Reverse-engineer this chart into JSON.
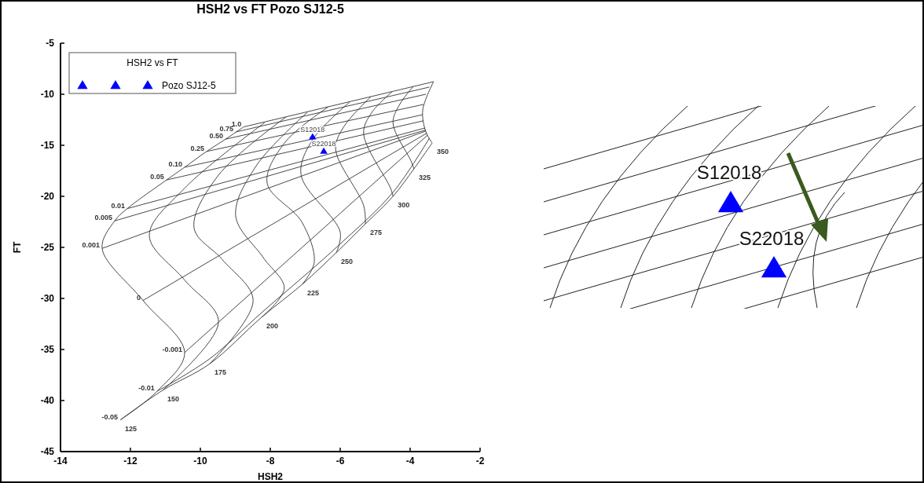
{
  "chart_data": [
    {
      "type": "line",
      "title": "HSH2 vs FT Pozo SJ12-5",
      "xlabel": "HSH2",
      "ylabel": "FT",
      "legend_title": "HSH2 vs FT",
      "legend": "top left",
      "xlim": [
        -14,
        -2
      ],
      "xticks": [
        -14,
        -12,
        -10,
        -8,
        -6,
        -4,
        -2
      ],
      "ylim": [
        -45,
        -5
      ],
      "yticks": [
        -45,
        -40,
        -35,
        -30,
        -25,
        -20,
        -15,
        -10,
        -5
      ],
      "annotations": [
        {
          "text": "S12018",
          "x": -6.79,
          "y": -14.2
        },
        {
          "text": "S22018",
          "x": -6.47,
          "y": -15.6
        }
      ],
      "series": [
        {
          "name": "-0.05",
          "color": "#333333",
          "x": [
            -12.29,
            -11.08,
            -9.73,
            -8.25,
            -7.08,
            -6.11,
            -5.28,
            -4.49,
            -3.89,
            -3.37
          ],
          "values": [
            -41.9,
            -39.0,
            -36.4,
            -31.85,
            -28.6,
            -25.5,
            -22.7,
            -20.0,
            -17.3,
            -14.77
          ]
        },
        {
          "name": "-0.01",
          "color": "#333333",
          "x": [
            -11.24,
            -9.73,
            -8.25,
            -6.11,
            -4.49,
            -3.45
          ],
          "values": [
            -39.1,
            -35.9,
            -31.4,
            -25.0,
            -19.6,
            -14.3
          ]
        },
        {
          "name": "-0.001",
          "color": "#333333",
          "x": [
            -10.45,
            -3.5
          ],
          "values": [
            -35.3,
            -14.0
          ]
        },
        {
          "name": "0",
          "color": "#333333",
          "x": [
            -11.64,
            -3.52
          ],
          "values": [
            -30.2,
            -13.8
          ]
        },
        {
          "name": "0.001",
          "color": "#333333",
          "x": [
            -12.81,
            -3.55
          ],
          "values": [
            -25.1,
            -13.6
          ]
        },
        {
          "name": "0.005",
          "color": "#333333",
          "x": [
            -12.45,
            -3.55
          ],
          "values": [
            -22.4,
            -13.5
          ]
        },
        {
          "name": "0.01",
          "color": "#333333",
          "x": [
            -12.09,
            -3.57
          ],
          "values": [
            -21.2,
            -13.3
          ]
        },
        {
          "name": "0.05",
          "color": "#333333",
          "x": [
            -10.97,
            -3.62
          ],
          "values": [
            -18.4,
            -12.6
          ]
        },
        {
          "name": "0.10",
          "color": "#333333",
          "x": [
            -10.45,
            -3.64
          ],
          "values": [
            -17.15,
            -12.0
          ]
        },
        {
          "name": "0.25",
          "color": "#333333",
          "x": [
            -9.82,
            -3.62
          ],
          "values": [
            -15.6,
            -11.0
          ]
        },
        {
          "name": "0.50",
          "color": "#333333",
          "x": [
            -9.28,
            -3.55
          ],
          "values": [
            -14.4,
            -10.0
          ]
        },
        {
          "name": "0.75",
          "color": "#333333",
          "x": [
            -8.99,
            -3.45
          ],
          "values": [
            -13.7,
            -9.3
          ]
        },
        {
          "name": "1.0",
          "color": "#333333",
          "x": [
            -8.76,
            -3.33
          ],
          "values": [
            -13.2,
            -8.77
          ]
        },
        {
          "name": "125",
          "color": "#333333",
          "x": [
            -12.29,
            -11.24,
            -10.45,
            -11.64,
            -12.81,
            -12.45,
            -12.09,
            -10.97,
            -10.45,
            -9.82,
            -9.28,
            -8.76
          ],
          "values": [
            -41.9,
            -39.1,
            -35.3,
            -30.2,
            -25.1,
            -22.4,
            -21.2,
            -18.4,
            -17.15,
            -15.6,
            -14.4,
            -13.2
          ]
        },
        {
          "name": "150",
          "color": "#333333",
          "x": [
            -11.08,
            -9.48,
            -10.45,
            -11.46,
            -10.45,
            -8.16
          ],
          "values": [
            -39.0,
            -32.3,
            -28.2,
            -23.85,
            -19.2,
            -12.77
          ]
        },
        {
          "name": "175",
          "color": "#333333",
          "x": [
            -9.73,
            -8.49,
            -9.37,
            -10.18,
            -9.5,
            -7.55
          ],
          "values": [
            -36.4,
            -30.2,
            -26.2,
            -23.1,
            -18.0,
            -12.23
          ]
        },
        {
          "name": "200",
          "color": "#333333",
          "x": [
            -8.25,
            -7.6,
            -8.2,
            -8.99,
            -8.4,
            -6.94
          ],
          "values": [
            -31.85,
            -29.0,
            -26.0,
            -21.9,
            -17.0,
            -11.77
          ]
        },
        {
          "name": "225",
          "color": "#333333",
          "x": [
            -7.08,
            -6.74,
            -7.1,
            -8.09,
            -7.6,
            -6.34
          ],
          "values": [
            -28.6,
            -26.4,
            -22.5,
            -18.7,
            -14.8,
            -11.23
          ]
        },
        {
          "name": "250",
          "color": "#333333",
          "x": [
            -6.11,
            -6.0,
            -7.12,
            -6.8,
            -5.73
          ],
          "values": [
            -25.5,
            -23.5,
            -17.9,
            -14.5,
            -10.77
          ]
        },
        {
          "name": "275",
          "color": "#333333",
          "x": [
            -5.28,
            -5.33,
            -6.13,
            -5.9,
            -5.12
          ],
          "values": [
            -22.7,
            -20.9,
            -15.4,
            -13.2,
            -10.23
          ]
        },
        {
          "name": "300",
          "color": "#333333",
          "x": [
            -4.49,
            -4.56,
            -5.33,
            -5.1,
            -4.52
          ],
          "values": [
            -20.0,
            -19.2,
            -13.85,
            -11.8,
            -9.77
          ]
        },
        {
          "name": "325",
          "color": "#333333",
          "x": [
            -3.89,
            -3.98,
            -4.49,
            -4.3,
            -3.91
          ],
          "values": [
            -17.3,
            -16.5,
            -12.85,
            -11.0,
            -9.23
          ]
        },
        {
          "name": "350",
          "color": "#333333",
          "x": [
            -3.37,
            -3.55,
            -3.64,
            -3.33
          ],
          "values": [
            -14.77,
            -13.69,
            -11.54,
            -8.77
          ]
        },
        {
          "name": "Pozo SJ12-5",
          "type": "scatter",
          "marker": "triangle",
          "color": "#0000ff",
          "x": [
            -6.79,
            -6.47
          ],
          "values": [
            -14.2,
            -15.6
          ]
        }
      ]
    },
    {
      "type": "other",
      "annotations": [
        "S12018",
        "S22018"
      ]
    }
  ]
}
